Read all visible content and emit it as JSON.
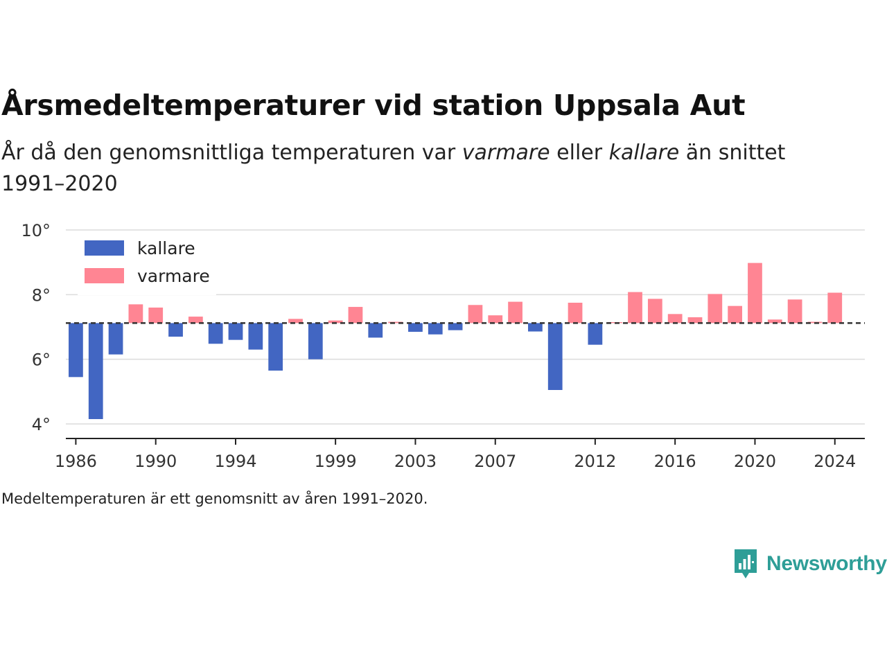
{
  "title": "Årsmedeltemperaturer vid station Uppsala Aut",
  "subtitle": {
    "part1": "År då den genomsnittliga temperaturen var ",
    "em1": "varmare",
    "part2": " eller ",
    "em2": "kallare",
    "part3": " än snittet 1991–2020"
  },
  "note": "Medeltemperaturen är ett genomsnitt av åren 1991–2020.",
  "brand": {
    "name": "Newsworthy",
    "icon": "newsworthy-logo-icon"
  },
  "colors": {
    "colder": "#4266c2",
    "warmer": "#ff8593",
    "baseline": "#333333",
    "brand": "#2e9e97"
  },
  "chart_data": {
    "type": "bar",
    "baseline": 7.12,
    "ylim": [
      3.55,
      10.0
    ],
    "yticks": [
      {
        "value": 4,
        "label": "4°"
      },
      {
        "value": 6,
        "label": "6°"
      },
      {
        "value": 8,
        "label": "8°"
      },
      {
        "value": 10,
        "label": "10°"
      }
    ],
    "xlim": [
      1985.5,
      2025.5
    ],
    "xticks": [
      "1986",
      "1990",
      "1994",
      "1999",
      "2003",
      "2007",
      "2012",
      "2016",
      "2020",
      "2024"
    ],
    "legend": {
      "position": "top-left",
      "items": [
        {
          "label": "kallare",
          "color": "#4266c2"
        },
        {
          "label": "varmare",
          "color": "#ff8593"
        }
      ]
    },
    "years": [
      1986,
      1987,
      1988,
      1989,
      1990,
      1991,
      1992,
      1993,
      1994,
      1995,
      1996,
      1997,
      1998,
      1999,
      2000,
      2001,
      2002,
      2003,
      2004,
      2005,
      2006,
      2007,
      2008,
      2009,
      2010,
      2011,
      2012,
      2013,
      2014,
      2015,
      2016,
      2017,
      2018,
      2019,
      2020,
      2021,
      2022,
      2023,
      2024
    ],
    "values": [
      5.45,
      4.15,
      6.15,
      7.7,
      7.6,
      6.7,
      7.32,
      6.48,
      6.6,
      6.3,
      5.65,
      7.25,
      6.0,
      7.2,
      7.62,
      6.67,
      7.16,
      6.85,
      6.77,
      6.9,
      7.68,
      7.36,
      7.78,
      6.86,
      5.05,
      7.75,
      6.45,
      7.15,
      8.08,
      7.87,
      7.4,
      7.3,
      8.02,
      7.65,
      8.98,
      7.23,
      7.85,
      7.16,
      8.06
    ]
  }
}
